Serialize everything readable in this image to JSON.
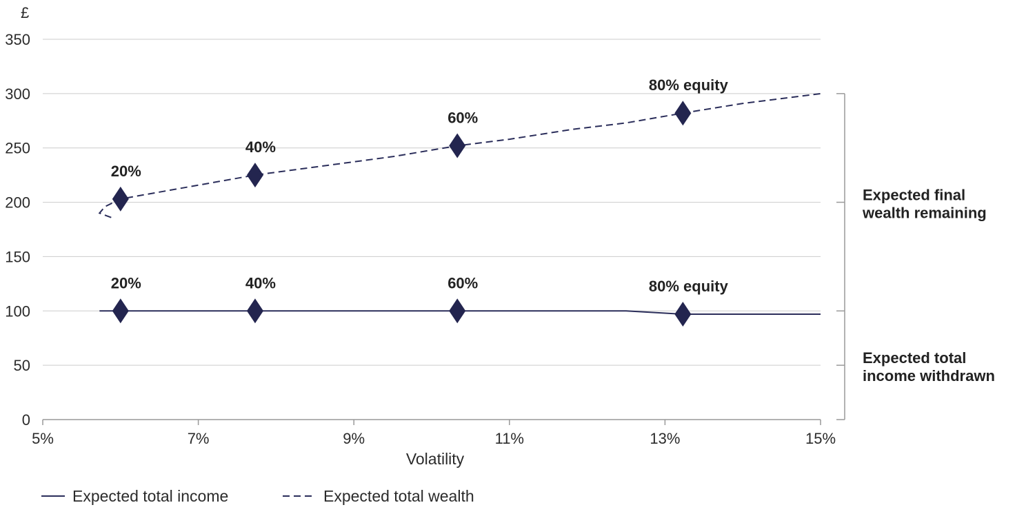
{
  "chart_data": {
    "type": "line",
    "title": "",
    "xlabel": "Volatility",
    "ylabel": "£",
    "xlim": [
      5,
      15
    ],
    "ylim": [
      0,
      350
    ],
    "x_ticks": [
      5,
      7,
      9,
      11,
      13,
      15
    ],
    "x_tick_labels": [
      "5%",
      "7%",
      "9%",
      "11%",
      "13%",
      "15%"
    ],
    "y_ticks": [
      0,
      50,
      100,
      150,
      200,
      250,
      300,
      350
    ],
    "y_tick_labels": [
      "0",
      "50",
      "100",
      "150",
      "200",
      "250",
      "300",
      "350"
    ],
    "grid": "horizontal",
    "legend_position": "bottom-left",
    "colors": {
      "series": "#2a2d5a",
      "marker": "#23254f",
      "grid": "#cccccc",
      "axis": "#999999"
    },
    "series": [
      {
        "name": "Expected total income",
        "style": "solid",
        "x": [
          5.73,
          6.0,
          7.73,
          10.33,
          12.5,
          13.23,
          15.0
        ],
        "y": [
          100,
          100,
          100,
          100,
          100,
          97,
          97
        ]
      },
      {
        "name": "Expected total wealth",
        "style": "dashed",
        "x": [
          5.88,
          5.73,
          5.8,
          6.0,
          7.73,
          9.5,
          10.33,
          11.0,
          11.8,
          12.5,
          13.23,
          14.0,
          15.0
        ],
        "y": [
          186,
          190,
          196,
          203,
          225,
          242,
          252,
          258,
          267,
          273,
          282,
          291,
          300
        ]
      }
    ],
    "markers": [
      {
        "series": "Expected total wealth",
        "x": 6.0,
        "y": 203,
        "label": "20%"
      },
      {
        "series": "Expected total wealth",
        "x": 7.73,
        "y": 225,
        "label": "40%"
      },
      {
        "series": "Expected total wealth",
        "x": 10.33,
        "y": 252,
        "label": "60%"
      },
      {
        "series": "Expected total wealth",
        "x": 13.23,
        "y": 282,
        "label": "80% equity"
      },
      {
        "series": "Expected total income",
        "x": 6.0,
        "y": 100,
        "label": "20%"
      },
      {
        "series": "Expected total income",
        "x": 7.73,
        "y": 100,
        "label": "40%"
      },
      {
        "series": "Expected total income",
        "x": 10.33,
        "y": 100,
        "label": "60%"
      },
      {
        "series": "Expected total income",
        "x": 13.23,
        "y": 97,
        "label": "80% equity"
      }
    ],
    "bracket": {
      "range": [
        0,
        300
      ],
      "ticks": [
        300,
        200,
        100,
        50
      ],
      "labels": [
        {
          "lines": [
            "Expected final",
            "wealth remaining"
          ],
          "at": 200
        },
        {
          "lines": [
            "Expected total",
            "income withdrawn"
          ],
          "at": 50
        }
      ]
    }
  }
}
